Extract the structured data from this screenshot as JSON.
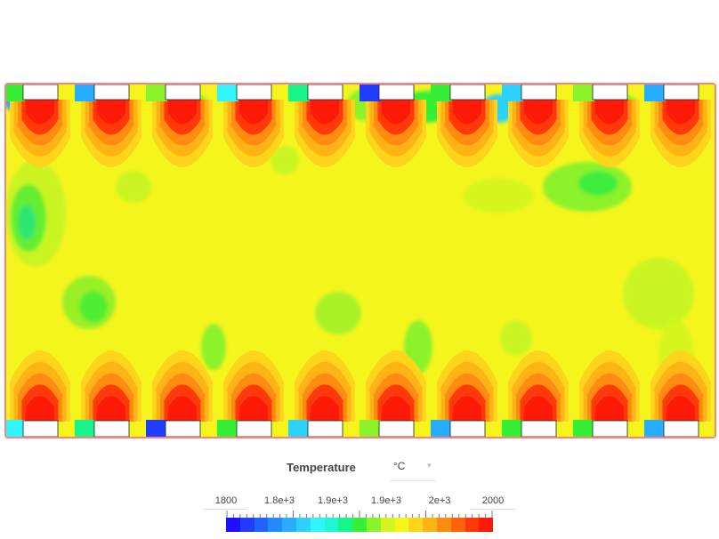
{
  "legend": {
    "title": "Temperature",
    "unit": "°C",
    "tick_labels": [
      "1800",
      "1.8e+3",
      "1.9e+3",
      "1.9e+3",
      "2e+3",
      "2000"
    ],
    "colors": [
      "#1e10ff",
      "#1f3cff",
      "#2163ff",
      "#248aff",
      "#27adff",
      "#2cd2ff",
      "#2ff5ff",
      "#1ef7cf",
      "#16f48a",
      "#36f038",
      "#8cf22a",
      "#d5f51f",
      "#f7f41a",
      "#fed51a",
      "#ffb415",
      "#ff8c10",
      "#ff640c",
      "#ff3a08",
      "#ff1a08"
    ]
  },
  "colors": {
    "hot": "#ff1a08",
    "ambient": "#f5f51e",
    "frame": "#ff8080"
  }
}
